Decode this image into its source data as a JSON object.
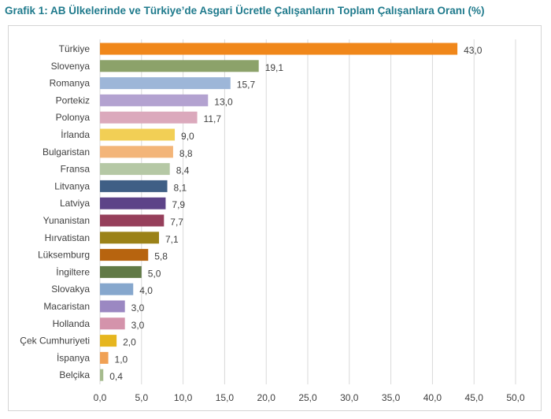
{
  "title": "Grafik 1: AB Ülkelerinde ve Türkiye’de Asgari Ücretle Çalışanların Toplam Çalışanlara Oranı (%)",
  "chart_data": {
    "type": "bar",
    "orientation": "horizontal",
    "title": "Grafik 1: AB Ülkelerinde ve Türkiye’de Asgari Ücretle Çalışanların Toplam Çalışanlara Oranı (%)",
    "xlabel": "",
    "ylabel": "",
    "xlim": [
      0,
      50
    ],
    "grid": true,
    "legend": "none",
    "categories": [
      "Türkiye",
      "Slovenya",
      "Romanya",
      "Portekiz",
      "Polonya",
      "İrlanda",
      "Bulgaristan",
      "Fransa",
      "Litvanya",
      "Latviya",
      "Yunanistan",
      "Hırvatistan",
      "Lüksemburg",
      "İngiltere",
      "Slovakya",
      "Macaristan",
      "Hollanda",
      "Çek Cumhuriyeti",
      "İspanya",
      "Belçika"
    ],
    "values": [
      43.0,
      19.1,
      15.7,
      13.0,
      11.7,
      9.0,
      8.8,
      8.4,
      8.1,
      7.9,
      7.7,
      7.1,
      5.8,
      5.0,
      4.0,
      3.0,
      3.0,
      2.0,
      1.0,
      0.4
    ],
    "value_labels": [
      "43,0",
      "19,1",
      "15,7",
      "13,0",
      "11,7",
      "9,0",
      "8,8",
      "8,4",
      "8,1",
      "7,9",
      "7,7",
      "7,1",
      "5,8",
      "5,0",
      "4,0",
      "3,0",
      "3,0",
      "2,0",
      "1,0",
      "0,4"
    ],
    "colors": [
      "#f0871a",
      "#8ca26a",
      "#9db6d8",
      "#b3a2d0",
      "#dba9bc",
      "#f2cf55",
      "#f3b579",
      "#b5c8a5",
      "#3f5f85",
      "#5d4388",
      "#963f5b",
      "#9b8218",
      "#b7640f",
      "#617a46",
      "#86a7cd",
      "#9b88c2",
      "#d493ab",
      "#e6b61f",
      "#f0a155",
      "#a6bb8e"
    ],
    "x_ticks": [
      0,
      5,
      10,
      15,
      20,
      25,
      30,
      35,
      40,
      45,
      50
    ],
    "x_tick_labels": [
      "0,0",
      "5,0",
      "10,0",
      "15,0",
      "20,0",
      "25,0",
      "30,0",
      "35,0",
      "40,0",
      "45,0",
      "50,0"
    ]
  }
}
